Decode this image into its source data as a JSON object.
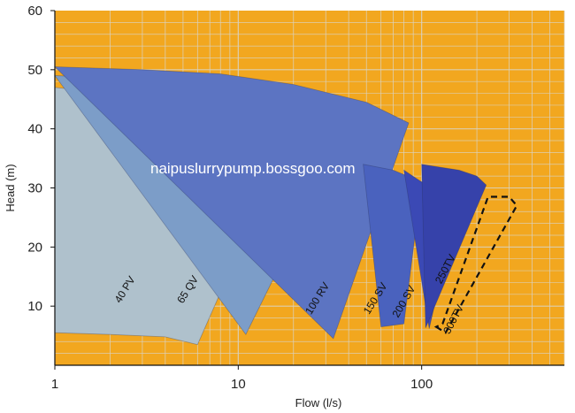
{
  "chart_data": {
    "type": "area",
    "title": "",
    "xlabel": "Flow (l/s)",
    "ylabel": "Head (m)",
    "x_scale": "log",
    "xlim": [
      1,
      600
    ],
    "ylim": [
      0,
      60
    ],
    "x_ticks": [
      1,
      10,
      100
    ],
    "x_tick_labels": [
      "1",
      "10",
      "100"
    ],
    "y_ticks": [
      10,
      20,
      30,
      40,
      50,
      60
    ],
    "y_tick_labels": [
      "10",
      "20",
      "30",
      "40",
      "50",
      "60"
    ],
    "grid": true,
    "background_color": "#F2A71F",
    "grid_color": "#d9d4c8",
    "series": [
      {
        "name": "40 PV",
        "fill": "#AFC1CC",
        "points": [
          [
            1,
            5.5
          ],
          [
            2,
            5.2
          ],
          [
            4,
            4.8
          ],
          [
            6,
            3.5
          ],
          [
            16,
            33.5
          ],
          [
            10,
            39.5
          ],
          [
            6,
            43
          ],
          [
            3,
            45.5
          ],
          [
            1,
            47
          ]
        ]
      },
      {
        "name": "65 QV",
        "fill": "#7C9DC8",
        "points": [
          [
            11,
            5.2
          ],
          [
            38,
            39
          ],
          [
            20,
            43.5
          ],
          [
            10,
            46.5
          ],
          [
            5,
            48
          ],
          [
            1,
            49
          ]
        ]
      },
      {
        "name": "100 RV",
        "fill": "#5C74C2",
        "points": [
          [
            33,
            4.5
          ],
          [
            85,
            41
          ],
          [
            50,
            44.5
          ],
          [
            20,
            47.5
          ],
          [
            8,
            49.3
          ],
          [
            3,
            50
          ],
          [
            1,
            50.5
          ]
        ]
      },
      {
        "name": "150 SV",
        "fill": "#4A62BE",
        "points": [
          [
            60,
            6.5
          ],
          [
            80,
            7
          ],
          [
            100,
            31
          ],
          [
            70,
            33
          ],
          [
            48,
            34
          ]
        ]
      },
      {
        "name": "200 SV",
        "fill": "#3B49B5",
        "points": [
          [
            110,
            6.2
          ],
          [
            155,
            26.5
          ],
          [
            130,
            29
          ],
          [
            100,
            31
          ],
          [
            80,
            33
          ]
        ]
      },
      {
        "name": "250 TV",
        "fill": "#3642AA",
        "points": [
          [
            105,
            6.3
          ],
          [
            225,
            30.5
          ],
          [
            200,
            32
          ],
          [
            160,
            33
          ],
          [
            100,
            34
          ]
        ]
      },
      {
        "name": "300 TV",
        "fill": "none",
        "dashed": true,
        "points": [
          [
            120,
            6.5
          ],
          [
            135,
            5.5
          ],
          [
            330,
            27
          ],
          [
            300,
            28.5
          ],
          [
            230,
            28.5
          ],
          [
            130,
            7
          ]
        ]
      }
    ],
    "labels": [
      {
        "text": "40 PV",
        "x": 2.5,
        "y": 12.5,
        "rotation": -58
      },
      {
        "text": "65 QV",
        "x": 5.5,
        "y": 12.5,
        "rotation": -58
      },
      {
        "text": "100 RV",
        "x": 28,
        "y": 11,
        "rotation": -58
      },
      {
        "text": "150 SV",
        "x": 58,
        "y": 11,
        "rotation": -58
      },
      {
        "text": "200 SV",
        "x": 83,
        "y": 10.5,
        "rotation": -60
      },
      {
        "text": "250TV",
        "x": 140,
        "y": 16,
        "rotation": -62
      },
      {
        "text": "300TV",
        "x": 155,
        "y": 7.5,
        "rotation": -62
      }
    ],
    "annotations": [
      {
        "text": "naipuslurrypump.bossgoo.com",
        "x": 12,
        "y": 32.5
      }
    ]
  }
}
